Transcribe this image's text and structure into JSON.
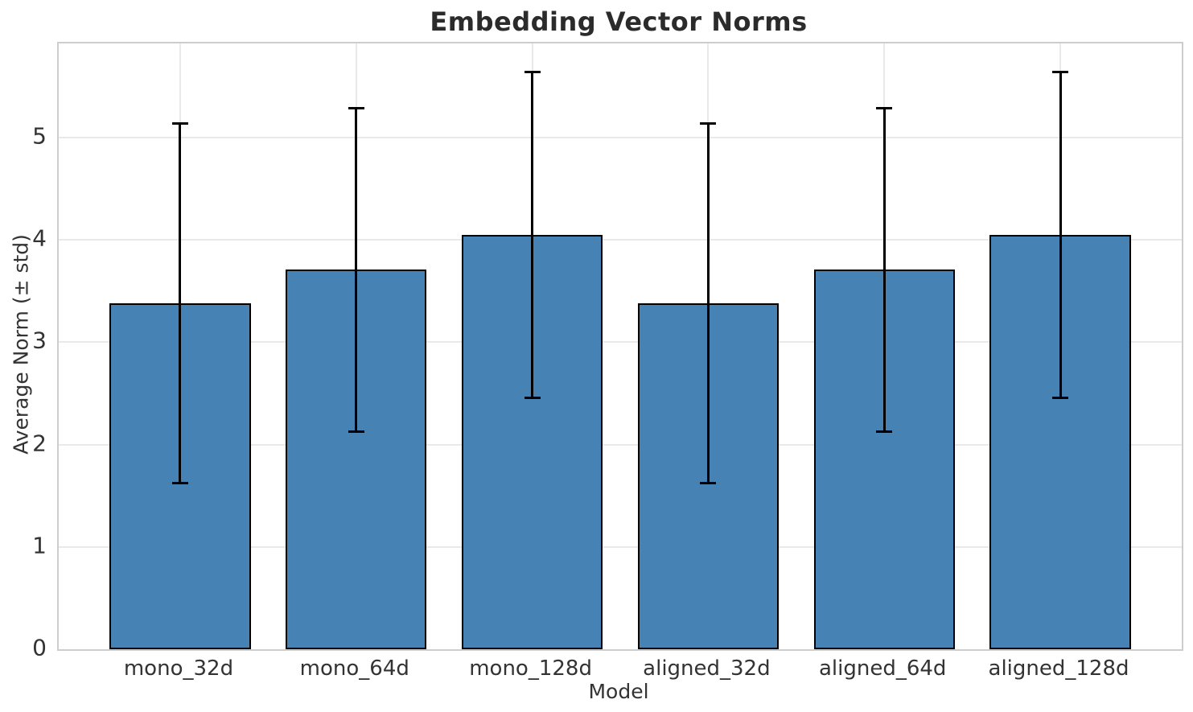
{
  "chart_data": {
    "type": "bar",
    "title": "Embedding Vector Norms",
    "xlabel": "Model",
    "ylabel": "Average Norm (± std)",
    "categories": [
      "mono_32d",
      "mono_64d",
      "mono_128d",
      "aligned_32d",
      "aligned_64d",
      "aligned_128d"
    ],
    "values": [
      3.38,
      3.71,
      4.05,
      3.38,
      3.71,
      4.05
    ],
    "errors": [
      1.76,
      1.58,
      1.59,
      1.76,
      1.58,
      1.59
    ],
    "yticks": [
      0,
      1,
      2,
      3,
      4,
      5
    ],
    "ylim": [
      0,
      5.92
    ],
    "grid": "both",
    "legend": "none",
    "colors": {
      "bar_fill": "#4682b4",
      "bar_edge": "#000000",
      "error_bar": "#000000",
      "grid": "#e9e9e9",
      "spine": "#cdcdcd",
      "tick_text": "#333333",
      "title_text": "#2b2b2b"
    }
  }
}
